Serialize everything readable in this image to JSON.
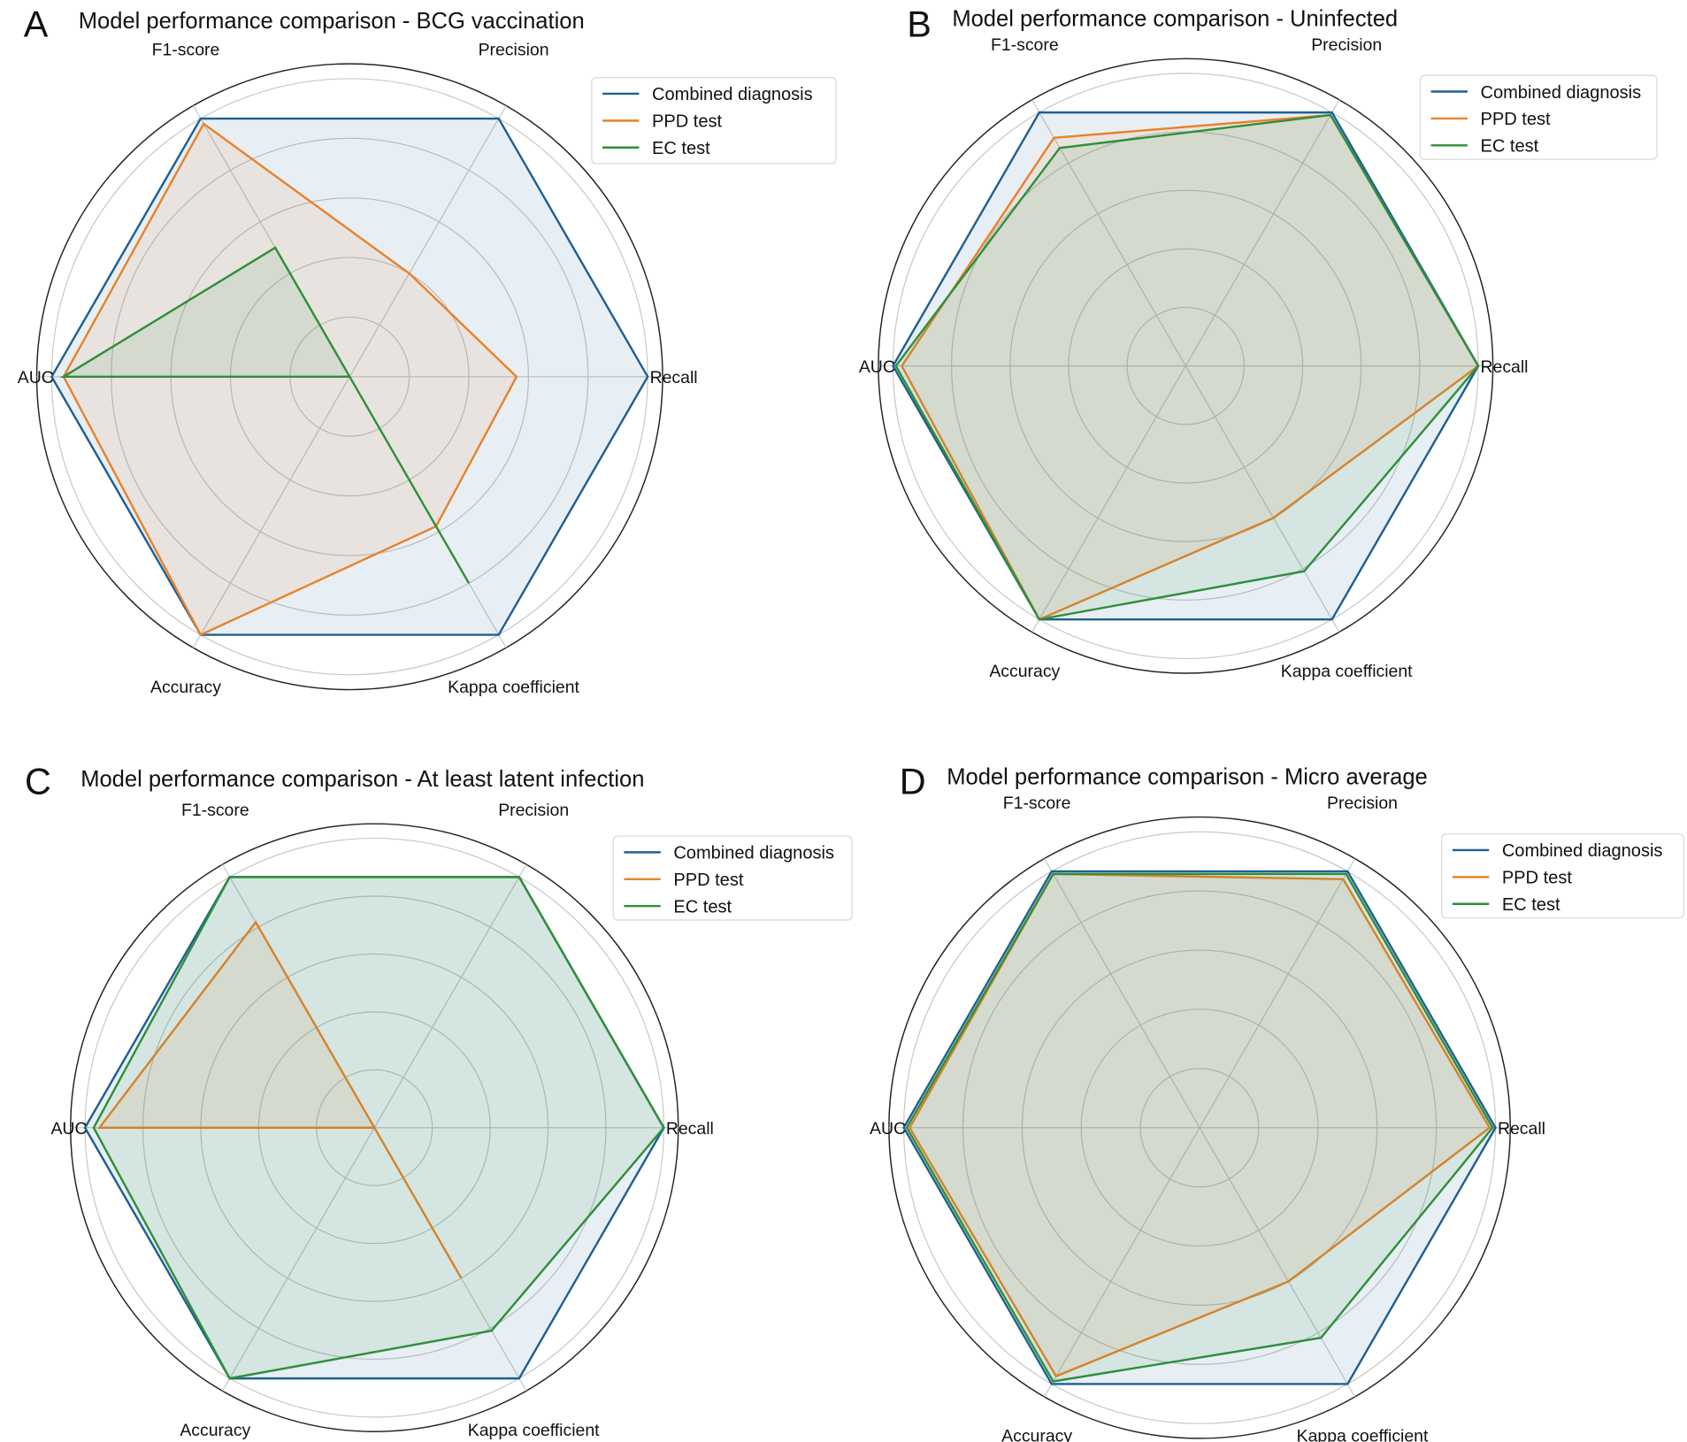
{
  "colors": {
    "Combined diagnosis": "#1f5f95",
    "PPD test": "#e8822a",
    "EC test": "#2f8f3a"
  },
  "chart_data": [
    {
      "type": "radar",
      "panel_letter": "A",
      "title": "Model performance comparison - BCG vaccination",
      "axes": [
        "Recall",
        "Precision",
        "F1-score",
        "AUC",
        "Accuracy",
        "Kappa coefficient"
      ],
      "rlim": [
        0,
        1.05
      ],
      "grid_values": [
        0.2,
        0.4,
        0.6,
        0.8,
        1.0
      ],
      "legend_position": "top-right",
      "series": [
        {
          "name": "Combined diagnosis",
          "values": [
            1.0,
            1.0,
            1.0,
            1.0,
            1.0,
            1.0
          ]
        },
        {
          "name": "PPD test",
          "values": [
            0.56,
            0.4,
            0.98,
            0.96,
            1.0,
            0.58
          ]
        },
        {
          "name": "EC test",
          "values": [
            0.0,
            0.0,
            0.5,
            0.96,
            0.0,
            0.8
          ]
        }
      ]
    },
    {
      "type": "radar",
      "panel_letter": "B",
      "title": "Model performance comparison - Uninfected",
      "axes": [
        "Recall",
        "Precision",
        "F1-score",
        "AUC",
        "Accuracy",
        "Kappa coefficient"
      ],
      "rlim": [
        0,
        1.05
      ],
      "grid_values": [
        0.2,
        0.4,
        0.6,
        0.8,
        1.0
      ],
      "legend_position": "top-right",
      "series": [
        {
          "name": "Combined diagnosis",
          "values": [
            1.0,
            1.0,
            1.0,
            1.0,
            1.0,
            1.0
          ]
        },
        {
          "name": "PPD test",
          "values": [
            1.0,
            0.99,
            0.9,
            0.97,
            1.0,
            0.6
          ]
        },
        {
          "name": "EC test",
          "values": [
            1.0,
            0.99,
            0.86,
            0.99,
            1.0,
            0.81
          ]
        }
      ]
    },
    {
      "type": "radar",
      "panel_letter": "C",
      "title": "Model performance comparison - At least latent infection",
      "axes": [
        "Recall",
        "Precision",
        "F1-score",
        "AUC",
        "Accuracy",
        "Kappa coefficient"
      ],
      "rlim": [
        0,
        1.05
      ],
      "grid_values": [
        0.2,
        0.4,
        0.6,
        0.8,
        1.0
      ],
      "legend_position": "top-right",
      "series": [
        {
          "name": "Combined diagnosis",
          "values": [
            1.0,
            1.0,
            1.0,
            1.0,
            1.0,
            1.0
          ]
        },
        {
          "name": "PPD test",
          "values": [
            0.0,
            0.0,
            0.82,
            0.95,
            0.0,
            0.6
          ]
        },
        {
          "name": "EC test",
          "values": [
            1.0,
            1.0,
            1.0,
            0.97,
            1.0,
            0.81
          ]
        }
      ]
    },
    {
      "type": "radar",
      "panel_letter": "D",
      "title": "Model performance comparison - Micro average",
      "axes": [
        "Recall",
        "Precision",
        "F1-score",
        "AUC",
        "Accuracy",
        "Kappa coefficient"
      ],
      "rlim": [
        0,
        1.05
      ],
      "grid_values": [
        0.2,
        0.4,
        0.6,
        0.8,
        1.0
      ],
      "legend_position": "top-right",
      "series": [
        {
          "name": "Combined diagnosis",
          "values": [
            1.0,
            1.0,
            1.0,
            1.0,
            1.0,
            1.0
          ]
        },
        {
          "name": "PPD test",
          "values": [
            0.98,
            0.97,
            0.99,
            0.98,
            0.97,
            0.6
          ]
        },
        {
          "name": "EC test",
          "values": [
            0.99,
            0.99,
            0.99,
            0.99,
            0.99,
            0.82
          ]
        }
      ]
    }
  ]
}
